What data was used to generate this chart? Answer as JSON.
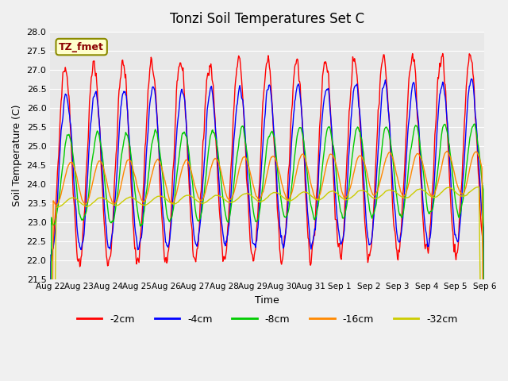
{
  "title": "Tonzi Soil Temperatures Set C",
  "xlabel": "Time",
  "ylabel": "Soil Temperature (C)",
  "ylim": [
    21.5,
    28.0
  ],
  "yticks": [
    21.5,
    22.0,
    22.5,
    23.0,
    23.5,
    24.0,
    24.5,
    25.0,
    25.5,
    26.0,
    26.5,
    27.0,
    27.5,
    28.0
  ],
  "line_colors": [
    "#ff0000",
    "#0000ff",
    "#00cc00",
    "#ff8800",
    "#cccc00"
  ],
  "line_labels": [
    "-2cm",
    "-4cm",
    "-8cm",
    "-16cm",
    "-32cm"
  ],
  "legend_label": "TZ_fmet",
  "date_labels": [
    "Aug 22",
    "Aug 23",
    "Aug 24",
    "Aug 25",
    "Aug 26",
    "Aug 27",
    "Aug 28",
    "Aug 29",
    "Aug 30",
    "Aug 31",
    "Sep 1",
    "Sep 2",
    "Sep 3",
    "Sep 4",
    "Sep 5",
    "Sep 6"
  ],
  "n_days": 15
}
